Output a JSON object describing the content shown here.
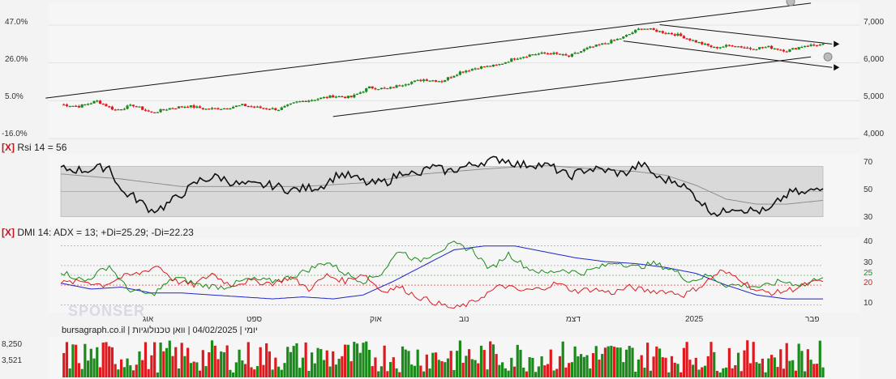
{
  "watermark": "SPONSER",
  "legend_text": "יומי | 04/02/2025 | וואן טכנולוגיות | bursagraph.co.il",
  "colors": {
    "up": "#1a8a1a",
    "down": "#e0191e",
    "panel": "#d9d9d9",
    "grid": "#bdbdbd"
  },
  "price_panel": {
    "left_ticks": [
      "47.0%",
      "26.0%",
      "5.0%",
      "-16.0%"
    ],
    "right_ticks": [
      "7,000",
      "6,000",
      "5,000",
      "4,000"
    ]
  },
  "rsi_panel": {
    "close_button": "[X]",
    "title": "Rsi 14 = 56",
    "ticks": [
      "70",
      "50",
      "30"
    ]
  },
  "dmi_panel": {
    "close_button": "[X]",
    "title": "DMI 14: ADX = 13; +Di=25.29; -Di=22.23",
    "ticks": [
      "40",
      "30",
      "25",
      "20",
      "10"
    ],
    "tick_colors": [
      "#333333",
      "#333333",
      "#1a8a1a",
      "#e0191e",
      "#333333"
    ]
  },
  "x_axis": {
    "labels": [
      "אוג",
      "ספט",
      "אוק",
      "נוב",
      "דצמ",
      "2025",
      "פבר"
    ]
  },
  "volume_panel": {
    "ticks": [
      "8,250",
      "3,521"
    ]
  },
  "chart_data": [
    {
      "type": "candlestick",
      "ylim": [
        4000,
        7600
      ],
      "y_ticks": [
        4000,
        5000,
        6000,
        7000
      ],
      "x_labels": [
        "אוג",
        "ספט",
        "אוק",
        "נוב",
        "דצמ",
        "2025",
        "פבר"
      ],
      "anchors": [
        [
          0,
          4900
        ],
        [
          6,
          4850
        ],
        [
          12,
          4990
        ],
        [
          18,
          4750
        ],
        [
          24,
          4880
        ],
        [
          30,
          4680
        ],
        [
          36,
          4800
        ],
        [
          42,
          4860
        ],
        [
          48,
          4780
        ],
        [
          54,
          4800
        ],
        [
          60,
          4880
        ],
        [
          66,
          4810
        ],
        [
          72,
          4770
        ],
        [
          78,
          4960
        ],
        [
          84,
          5040
        ],
        [
          90,
          5120
        ],
        [
          96,
          5090
        ],
        [
          102,
          5350
        ],
        [
          108,
          5310
        ],
        [
          114,
          5460
        ],
        [
          120,
          5560
        ],
        [
          126,
          5520
        ],
        [
          132,
          5760
        ],
        [
          138,
          5880
        ],
        [
          144,
          5930
        ],
        [
          150,
          6120
        ],
        [
          156,
          6230
        ],
        [
          162,
          6260
        ],
        [
          168,
          6170
        ],
        [
          174,
          6380
        ],
        [
          180,
          6520
        ],
        [
          186,
          6680
        ],
        [
          192,
          6930
        ],
        [
          198,
          6830
        ],
        [
          204,
          6740
        ],
        [
          210,
          6560
        ],
        [
          216,
          6400
        ],
        [
          222,
          6470
        ],
        [
          228,
          6380
        ],
        [
          234,
          6420
        ],
        [
          240,
          6320
        ],
        [
          246,
          6460
        ],
        [
          252,
          6480
        ]
      ],
      "channel_lines": [
        {
          "x1": -5,
          "y1": 5070,
          "x2": 248,
          "y2": 7580
        },
        {
          "x1": 90,
          "y1": 4580,
          "x2": 248,
          "y2": 6160
        },
        {
          "x1": 198,
          "y1": 7010,
          "x2": 255,
          "y2": 6500
        },
        {
          "x1": 186,
          "y1": 6580,
          "x2": 255,
          "y2": 5880
        }
      ]
    },
    {
      "type": "line",
      "title": "Rsi 14 = 56",
      "ylim": [
        22,
        80
      ],
      "y_ticks": [
        70,
        50,
        30
      ],
      "band": [
        30,
        70
      ],
      "series": [
        {
          "values_anchor": [
            [
              0,
              68
            ],
            [
              8,
              67
            ],
            [
              16,
              70
            ],
            [
              20,
              50
            ],
            [
              24,
              46
            ],
            [
              30,
              35
            ],
            [
              34,
              38
            ],
            [
              40,
              48
            ],
            [
              46,
              59
            ],
            [
              52,
              62
            ],
            [
              58,
              56
            ],
            [
              64,
              55
            ],
            [
              70,
              55
            ],
            [
              76,
              51
            ],
            [
              82,
              53
            ],
            [
              86,
              54
            ],
            [
              92,
              64
            ],
            [
              96,
              62
            ],
            [
              102,
              56
            ],
            [
              108,
              58
            ],
            [
              114,
              67
            ],
            [
              118,
              62
            ],
            [
              122,
              70
            ],
            [
              128,
              66
            ],
            [
              134,
              70
            ],
            [
              140,
              74
            ],
            [
              146,
              76
            ],
            [
              152,
              71
            ],
            [
              156,
              72
            ],
            [
              162,
              70
            ],
            [
              168,
              62
            ],
            [
              174,
              68
            ],
            [
              180,
              67
            ],
            [
              186,
              64
            ],
            [
              192,
              72
            ],
            [
              198,
              60
            ],
            [
              204,
              58
            ],
            [
              210,
              46
            ],
            [
              214,
              36
            ],
            [
              218,
              32
            ],
            [
              222,
              38
            ],
            [
              228,
              35
            ],
            [
              234,
              34
            ],
            [
              238,
              44
            ],
            [
              242,
              50
            ],
            [
              246,
              48
            ],
            [
              252,
              55
            ]
          ]
        },
        {
          "values_anchor": [
            [
              0,
              64
            ],
            [
              20,
              60
            ],
            [
              40,
              54
            ],
            [
              60,
              54
            ],
            [
              80,
              54
            ],
            [
              100,
              57
            ],
            [
              120,
              64
            ],
            [
              140,
              68
            ],
            [
              160,
              71
            ],
            [
              170,
              69
            ],
            [
              190,
              66
            ],
            [
              200,
              63
            ],
            [
              210,
              55
            ],
            [
              220,
              44
            ],
            [
              230,
              40
            ],
            [
              240,
              40
            ],
            [
              252,
              43
            ]
          ]
        }
      ]
    },
    {
      "type": "line",
      "title": "DMI 14: ADX = 13; +Di=25.29; -Di=22.23",
      "ylim": [
        6,
        44
      ],
      "y_ticks": [
        40,
        30,
        25,
        20,
        10
      ],
      "series": [
        {
          "name": "ADX",
          "values_anchor": [
            [
              0,
              21
            ],
            [
              10,
              18
            ],
            [
              20,
              19
            ],
            [
              30,
              16
            ],
            [
              40,
              16
            ],
            [
              50,
              15
            ],
            [
              60,
              14
            ],
            [
              70,
              13
            ],
            [
              80,
              14
            ],
            [
              90,
              13
            ],
            [
              100,
              15
            ],
            [
              110,
              22
            ],
            [
              120,
              30
            ],
            [
              130,
              38
            ],
            [
              140,
              40
            ],
            [
              150,
              40
            ],
            [
              160,
              37
            ],
            [
              170,
              34
            ],
            [
              180,
              32
            ],
            [
              190,
              31
            ],
            [
              200,
              29
            ],
            [
              210,
              26
            ],
            [
              220,
              20
            ],
            [
              230,
              15
            ],
            [
              240,
              13
            ],
            [
              252,
              13
            ]
          ]
        },
        {
          "name": "+Di",
          "values_anchor": [
            [
              0,
              27
            ],
            [
              8,
              22
            ],
            [
              16,
              30
            ],
            [
              22,
              18
            ],
            [
              30,
              15
            ],
            [
              38,
              24
            ],
            [
              46,
              20
            ],
            [
              54,
              19
            ],
            [
              62,
              23
            ],
            [
              70,
              22
            ],
            [
              76,
              24
            ],
            [
              82,
              28
            ],
            [
              88,
              32
            ],
            [
              94,
              26
            ],
            [
              100,
              22
            ],
            [
              106,
              26
            ],
            [
              112,
              38
            ],
            [
              118,
              32
            ],
            [
              124,
              37
            ],
            [
              130,
              41
            ],
            [
              136,
              38
            ],
            [
              142,
              28
            ],
            [
              148,
              36
            ],
            [
              154,
              29
            ],
            [
              160,
              26
            ],
            [
              166,
              28
            ],
            [
              172,
              26
            ],
            [
              178,
              29
            ],
            [
              184,
              32
            ],
            [
              190,
              29
            ],
            [
              196,
              31
            ],
            [
              202,
              28
            ],
            [
              208,
              22
            ],
            [
              214,
              25
            ],
            [
              220,
              20
            ],
            [
              226,
              20
            ],
            [
              232,
              19
            ],
            [
              238,
              22
            ],
            [
              246,
              20
            ],
            [
              252,
              25
            ]
          ]
        },
        {
          "name": "-Di",
          "values_anchor": [
            [
              0,
              21
            ],
            [
              8,
              22
            ],
            [
              14,
              20
            ],
            [
              20,
              24
            ],
            [
              26,
              26
            ],
            [
              32,
              30
            ],
            [
              38,
              22
            ],
            [
              44,
              20
            ],
            [
              50,
              26
            ],
            [
              56,
              20
            ],
            [
              62,
              22
            ],
            [
              70,
              21
            ],
            [
              76,
              24
            ],
            [
              82,
              18
            ],
            [
              88,
              25
            ],
            [
              94,
              22
            ],
            [
              100,
              26
            ],
            [
              106,
              17
            ],
            [
              112,
              19
            ],
            [
              118,
              14
            ],
            [
              124,
              11
            ],
            [
              130,
              8
            ],
            [
              136,
              11
            ],
            [
              140,
              15
            ],
            [
              146,
              20
            ],
            [
              152,
              17
            ],
            [
              158,
              18
            ],
            [
              164,
              21
            ],
            [
              170,
              17
            ],
            [
              176,
              18
            ],
            [
              182,
              16
            ],
            [
              188,
              19
            ],
            [
              194,
              17
            ],
            [
              200,
              17
            ],
            [
              206,
              15
            ],
            [
              212,
              20
            ],
            [
              218,
              27
            ],
            [
              224,
              24
            ],
            [
              230,
              17
            ],
            [
              236,
              16
            ],
            [
              242,
              18
            ],
            [
              248,
              21
            ],
            [
              252,
              22
            ]
          ]
        }
      ]
    },
    {
      "type": "bar",
      "title": "",
      "y_ticks": [
        8250,
        3521
      ],
      "ylim": [
        0,
        10500
      ]
    }
  ]
}
